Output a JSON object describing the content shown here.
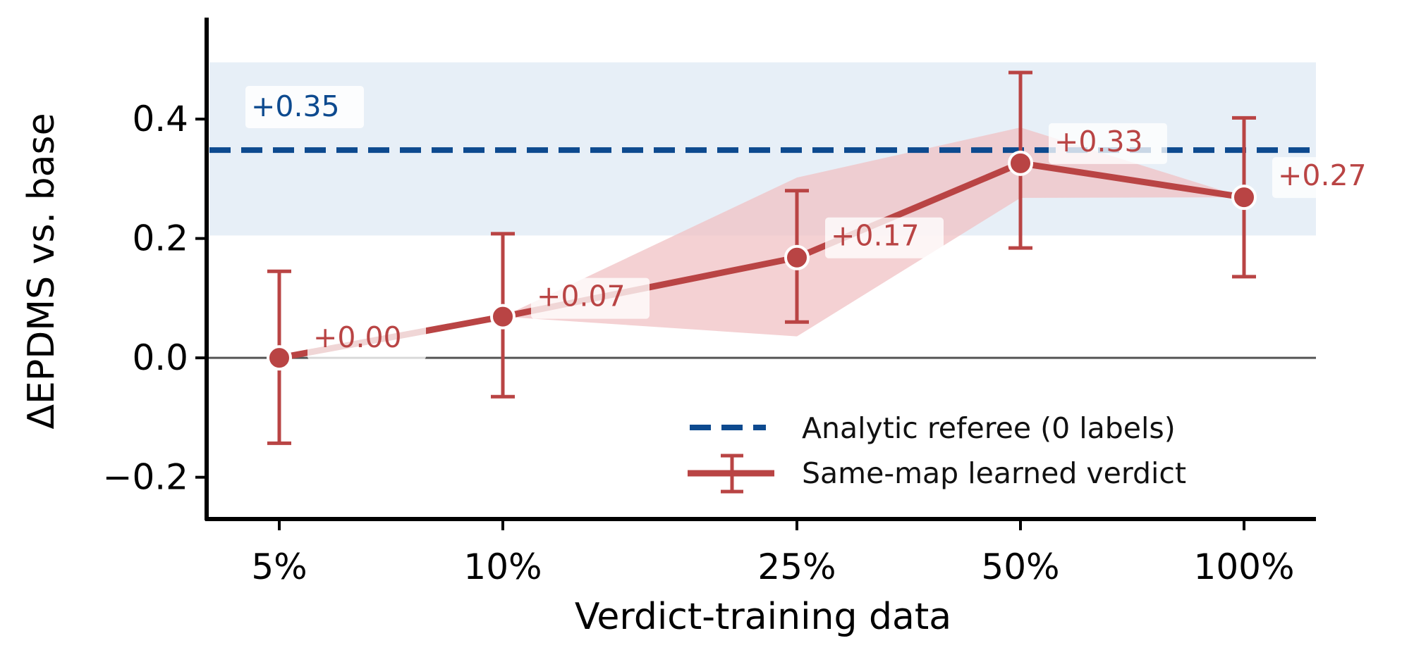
{
  "chart_data": {
    "type": "line",
    "xlabel": "Verdict-training data",
    "ylabel": "ΔEPDMS vs. base",
    "categories": [
      "5%",
      "10%",
      "25%",
      "50%",
      "100%"
    ],
    "ylim": [
      -0.27,
      0.57
    ],
    "yticks": [
      {
        "value": -0.2,
        "label": "−0.2"
      },
      {
        "value": 0.0,
        "label": "0.0"
      },
      {
        "value": 0.2,
        "label": "0.2"
      },
      {
        "value": 0.4,
        "label": "0.4"
      }
    ],
    "grid": false,
    "zero_line": 0,
    "reference": {
      "name": "Analytic referee (0 labels)",
      "value": 0.348,
      "band": [
        0.205,
        0.495
      ],
      "label": "+0.35",
      "color": "#0d4a8f",
      "band_color": "#e7eff7"
    },
    "series": [
      {
        "name": "Same-map learned verdict",
        "color": "#b94444",
        "fill_color": "#f0c2c4",
        "values": [
          0.0,
          0.069,
          0.168,
          0.326,
          0.269
        ],
        "err_low": [
          -0.143,
          -0.065,
          0.06,
          0.184,
          0.136
        ],
        "err_high": [
          0.145,
          0.208,
          0.28,
          0.478,
          0.402
        ],
        "band_low": [
          0.0,
          0.069,
          0.036,
          0.268,
          0.269
        ],
        "band_high": [
          0.0,
          0.069,
          0.302,
          0.386,
          0.269
        ],
        "labels": [
          "+0.00",
          "+0.07",
          "+0.17",
          "+0.33",
          "+0.27"
        ]
      }
    ],
    "legend": {
      "position": "lower-right",
      "entries": [
        "Analytic referee (0 labels)",
        "Same-map learned verdict"
      ]
    }
  }
}
